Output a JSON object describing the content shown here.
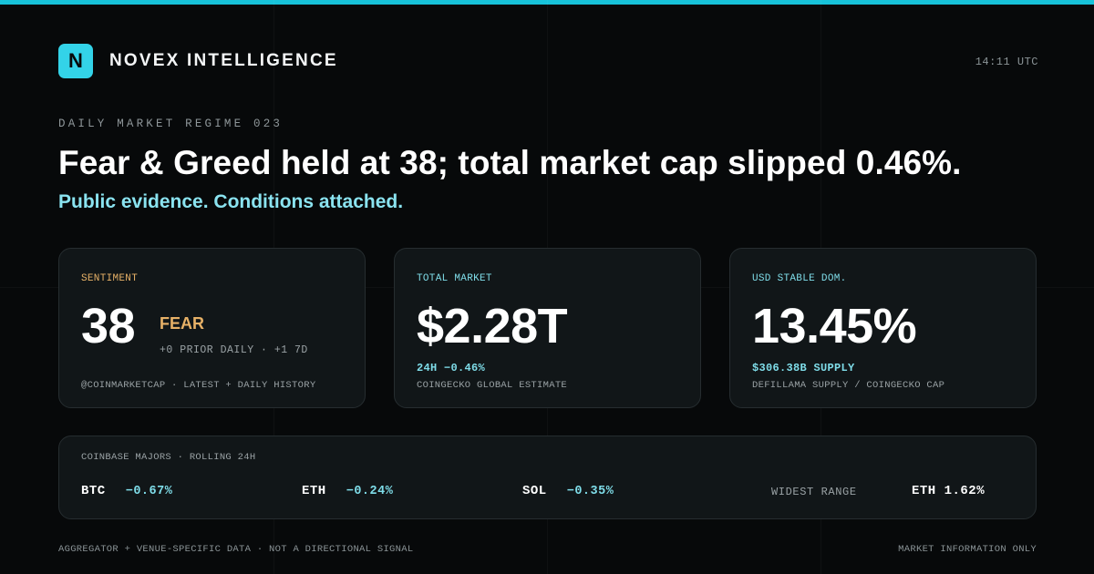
{
  "brand": {
    "logo_letter": "N",
    "name": "NOVEX INTELLIGENCE"
  },
  "clock": "14:11 UTC",
  "eyebrow": "DAILY MARKET REGIME 023",
  "headline": "Fear & Greed held at 38; total market cap slipped 0.46%.",
  "subhead": "Public evidence. Conditions attached.",
  "cards": {
    "sentiment": {
      "label": "SENTIMENT",
      "value": "38",
      "status": "FEAR",
      "delta": "+0 PRIOR DAILY · +1 7D",
      "source": "@COINMARKETCAP · LATEST + DAILY HISTORY"
    },
    "total_market": {
      "label": "TOTAL MARKET",
      "value": "$2.28T",
      "change": "24H −0.46%",
      "source": "COINGECKO GLOBAL ESTIMATE"
    },
    "stable_dom": {
      "label": "USD STABLE DOM.",
      "value": "13.45%",
      "supply": "$306.38B SUPPLY",
      "source": "DEFILLAMA SUPPLY / COINGECKO CAP"
    }
  },
  "majors": {
    "label": "COINBASE MAJORS · ROLLING 24H",
    "items": [
      {
        "symbol": "BTC",
        "change": "−0.67%"
      },
      {
        "symbol": "ETH",
        "change": "−0.24%"
      },
      {
        "symbol": "SOL",
        "change": "−0.35%"
      }
    ],
    "widest_label": "WIDEST RANGE",
    "widest_value": "ETH 1.62%"
  },
  "footer": {
    "left": "AGGREGATOR + VENUE-SPECIFIC DATA · NOT A DIRECTIONAL SIGNAL",
    "right": "MARKET INFORMATION ONLY"
  },
  "colors": {
    "background": "#07090a",
    "accent": "#33d3e8",
    "accent_text": "#7fdde9",
    "fear": "#e7b167",
    "card_bg": "#111618"
  }
}
